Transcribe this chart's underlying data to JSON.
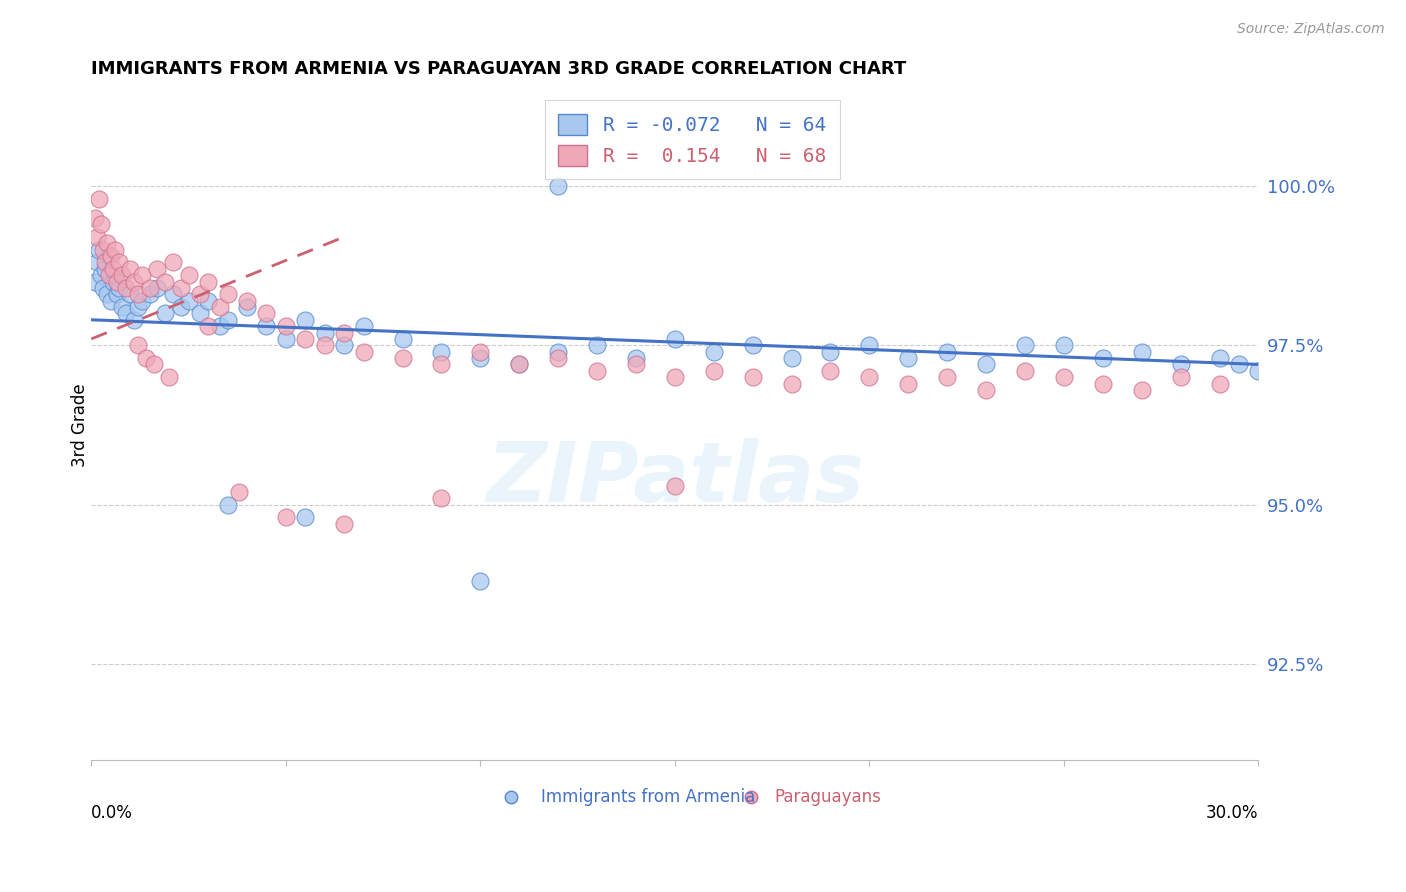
{
  "title": "IMMIGRANTS FROM ARMENIA VS PARAGUAYAN 3RD GRADE CORRELATION CHART",
  "source": "Source: ZipAtlas.com",
  "ylabel": "3rd Grade",
  "y_ticks": [
    92.5,
    95.0,
    97.5,
    100.0
  ],
  "y_tick_labels": [
    "92.5%",
    "95.0%",
    "97.5%",
    "100.0%"
  ],
  "xlim": [
    0.0,
    30.0
  ],
  "ylim": [
    91.0,
    101.5
  ],
  "watermark": "ZIPatlas",
  "legend_r1": "R = -0.072",
  "legend_n1": "N = 64",
  "legend_r2": "R =  0.154",
  "legend_n2": "N = 68",
  "series1_color": "#a8c8f0",
  "series1_edge": "#5588cc",
  "series2_color": "#f0a8b8",
  "series2_edge": "#cc7090",
  "line1_color": "#4472c4",
  "line2_color": "#cc6070",
  "background_color": "#ffffff",
  "grid_color": "#cccccc",
  "blue_x": [
    0.1,
    0.15,
    0.2,
    0.25,
    0.3,
    0.35,
    0.4,
    0.45,
    0.5,
    0.55,
    0.6,
    0.65,
    0.7,
    0.8,
    0.9,
    1.0,
    1.1,
    1.2,
    1.3,
    1.5,
    1.7,
    1.9,
    2.1,
    2.3,
    2.5,
    2.8,
    3.0,
    3.3,
    3.5,
    4.0,
    4.5,
    5.0,
    5.5,
    6.0,
    6.5,
    7.0,
    8.0,
    9.0,
    10.0,
    11.0,
    12.0,
    13.0,
    14.0,
    15.0,
    16.0,
    17.0,
    18.0,
    19.0,
    20.0,
    21.0,
    22.0,
    23.0,
    24.0,
    25.0,
    26.0,
    27.0,
    28.0,
    29.0,
    29.5,
    30.0,
    3.5,
    5.5,
    10.0,
    12.0
  ],
  "blue_y": [
    98.5,
    98.8,
    99.0,
    98.6,
    98.4,
    98.7,
    98.3,
    98.9,
    98.2,
    98.5,
    98.6,
    98.3,
    98.4,
    98.1,
    98.0,
    98.3,
    97.9,
    98.1,
    98.2,
    98.3,
    98.4,
    98.0,
    98.3,
    98.1,
    98.2,
    98.0,
    98.2,
    97.8,
    97.9,
    98.1,
    97.8,
    97.6,
    97.9,
    97.7,
    97.5,
    97.8,
    97.6,
    97.4,
    97.3,
    97.2,
    97.4,
    97.5,
    97.3,
    97.6,
    97.4,
    97.5,
    97.3,
    97.4,
    97.5,
    97.3,
    97.4,
    97.2,
    97.5,
    97.5,
    97.3,
    97.4,
    97.2,
    97.3,
    97.2,
    97.1,
    95.0,
    94.8,
    93.8,
    100.0
  ],
  "pink_x": [
    0.1,
    0.15,
    0.2,
    0.25,
    0.3,
    0.35,
    0.4,
    0.45,
    0.5,
    0.55,
    0.6,
    0.65,
    0.7,
    0.8,
    0.9,
    1.0,
    1.1,
    1.2,
    1.3,
    1.5,
    1.7,
    1.9,
    2.1,
    2.3,
    2.5,
    2.8,
    3.0,
    3.3,
    3.5,
    4.0,
    4.5,
    5.0,
    5.5,
    6.0,
    6.5,
    7.0,
    8.0,
    9.0,
    10.0,
    11.0,
    12.0,
    13.0,
    14.0,
    15.0,
    16.0,
    17.0,
    18.0,
    19.0,
    20.0,
    21.0,
    22.0,
    23.0,
    24.0,
    25.0,
    26.0,
    27.0,
    28.0,
    29.0,
    1.2,
    1.4,
    1.6,
    2.0,
    3.0,
    3.8,
    5.0,
    6.5,
    9.0,
    15.0
  ],
  "pink_y": [
    99.5,
    99.2,
    99.8,
    99.4,
    99.0,
    98.8,
    99.1,
    98.6,
    98.9,
    98.7,
    99.0,
    98.5,
    98.8,
    98.6,
    98.4,
    98.7,
    98.5,
    98.3,
    98.6,
    98.4,
    98.7,
    98.5,
    98.8,
    98.4,
    98.6,
    98.3,
    98.5,
    98.1,
    98.3,
    98.2,
    98.0,
    97.8,
    97.6,
    97.5,
    97.7,
    97.4,
    97.3,
    97.2,
    97.4,
    97.2,
    97.3,
    97.1,
    97.2,
    97.0,
    97.1,
    97.0,
    96.9,
    97.1,
    97.0,
    96.9,
    97.0,
    96.8,
    97.1,
    97.0,
    96.9,
    96.8,
    97.0,
    96.9,
    97.5,
    97.3,
    97.2,
    97.0,
    97.8,
    95.2,
    94.8,
    94.7,
    95.1,
    95.3
  ],
  "blue_trend_x": [
    0.0,
    30.0
  ],
  "blue_trend_y": [
    97.9,
    97.2
  ],
  "pink_trend_x": [
    0.0,
    6.5
  ],
  "pink_trend_y": [
    97.6,
    99.2
  ]
}
